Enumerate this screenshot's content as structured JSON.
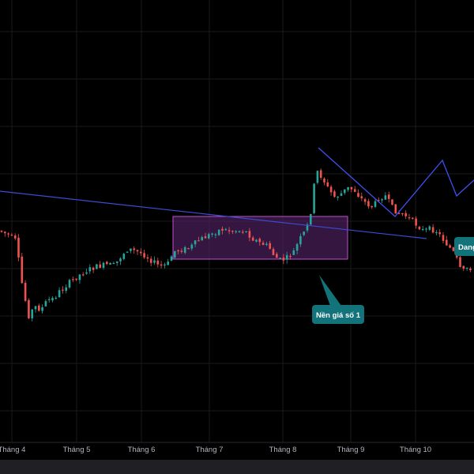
{
  "chart_data": {
    "type": "candlestick",
    "x_axis": {
      "tick_labels": [
        "Tháng 4",
        "Tháng 5",
        "Tháng 6",
        "Tháng 7",
        "Tháng 8",
        "Tháng 9",
        "Tháng 10"
      ]
    },
    "grid": true,
    "colors": {
      "background": "#000000",
      "up": "#26a69a",
      "down": "#ef5350",
      "trendline": "#3d4cd6",
      "zigzag": "#3f4ff0",
      "box_fill": "#4a1f5c",
      "box_stroke": "#c24fd0",
      "callout": "#13737a",
      "grid": "#1a1a1d",
      "axis_text": "#b2b5be",
      "bottom_bar": "#1f1f24"
    },
    "annotations": {
      "callout_main": "Nền giá số 1",
      "callout_right": "Dang"
    }
  }
}
